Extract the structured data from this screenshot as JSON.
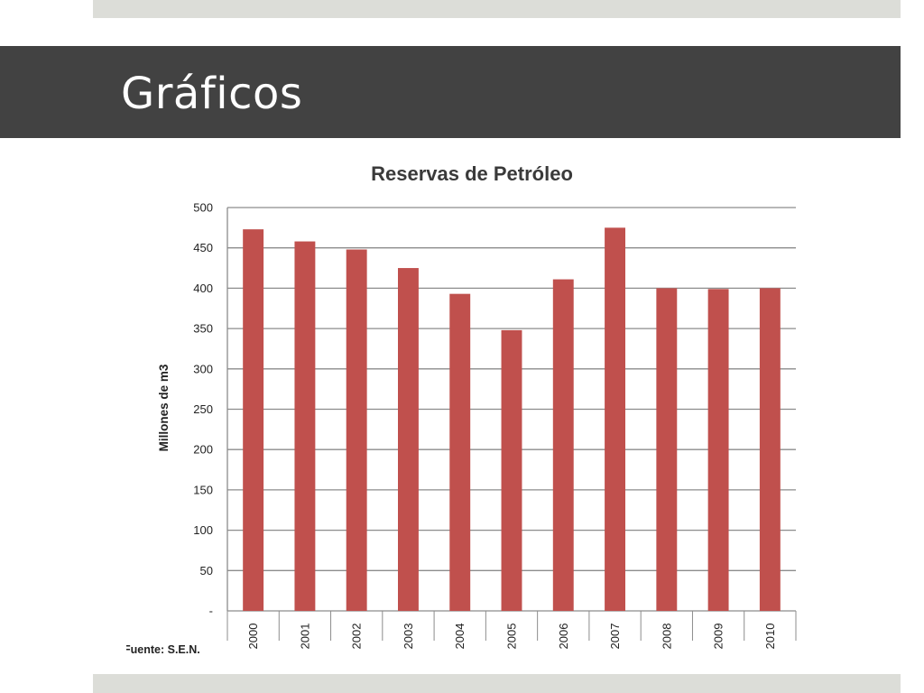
{
  "slide": {
    "title": "Gráficos"
  },
  "colors": {
    "title_band": "#424242",
    "accent_bars": "#dcddd8",
    "bar_fill": "#c0504d",
    "gridline": "#8c8c8c"
  },
  "chart_data": {
    "type": "bar",
    "title": "Reservas de Petróleo",
    "xlabel": "",
    "ylabel": "Millones de m3",
    "source": "Fuente: S.E.N.",
    "categories": [
      "2000",
      "2001",
      "2002",
      "2003",
      "2004",
      "2005",
      "2006",
      "2007",
      "2008",
      "2009",
      "2010"
    ],
    "values": [
      473,
      458,
      448,
      425,
      393,
      348,
      411,
      475,
      400,
      399,
      400
    ],
    "ylim": [
      0,
      500
    ],
    "yticks": [
      0,
      50,
      100,
      150,
      200,
      250,
      300,
      350,
      400,
      450,
      500
    ],
    "ytick_labels": [
      "-",
      "50",
      "100",
      "150",
      "200",
      "250",
      "300",
      "350",
      "400",
      "450",
      "500"
    ],
    "grid": true,
    "legend": "none"
  }
}
